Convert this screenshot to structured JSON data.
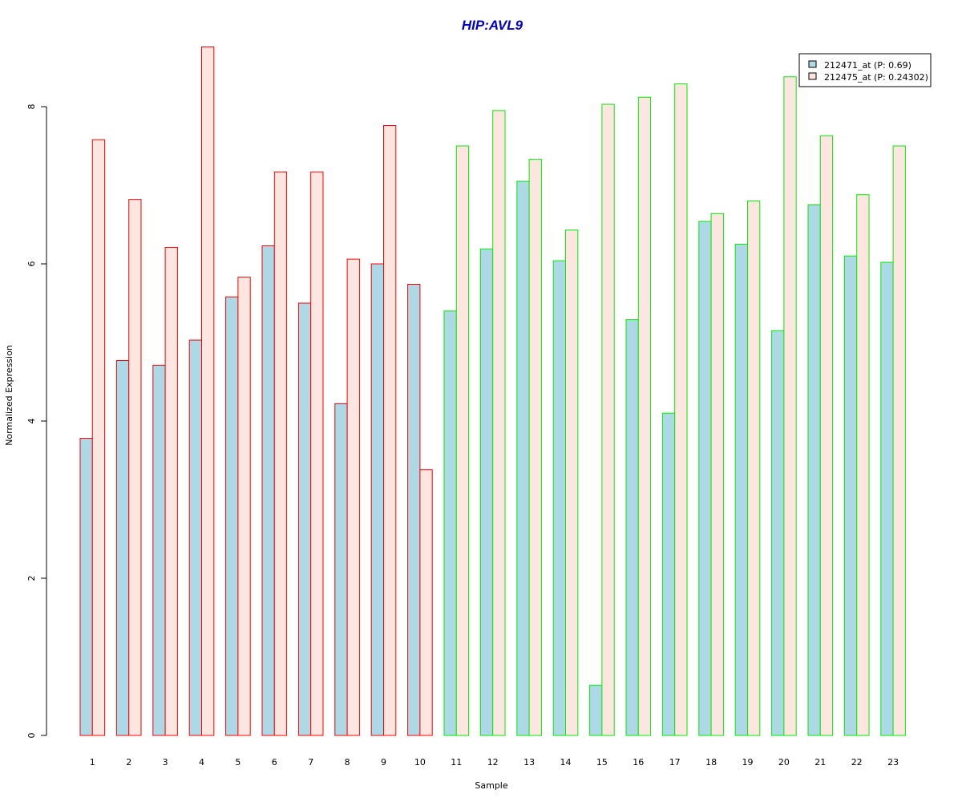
{
  "chart_data": {
    "type": "bar",
    "title": "HIP:AVL9",
    "xlabel": "Sample",
    "ylabel": "Normalized Expression",
    "ylim": [
      0,
      8.76
    ],
    "yticks": [
      "0",
      "2",
      "4",
      "6",
      "8"
    ],
    "categories": [
      "1",
      "2",
      "3",
      "4",
      "5",
      "6",
      "7",
      "8",
      "9",
      "10",
      "11",
      "12",
      "13",
      "14",
      "15",
      "16",
      "17",
      "18",
      "19",
      "20",
      "21",
      "22",
      "23"
    ],
    "group_border_colors": [
      "#ff0000",
      "#ff0000",
      "#ff0000",
      "#ff0000",
      "#ff0000",
      "#ff0000",
      "#ff0000",
      "#ff0000",
      "#ff0000",
      "#ff0000",
      "#00ee00",
      "#00ee00",
      "#00ee00",
      "#00ee00",
      "#00ee00",
      "#00ee00",
      "#00ee00",
      "#00ee00",
      "#00ee00",
      "#00ee00",
      "#00ee00",
      "#00ee00",
      "#00ee00"
    ],
    "series": [
      {
        "name": "212471_at (P: 0.69)",
        "fill": "#add8e6",
        "values": [
          3.78,
          4.77,
          4.71,
          5.03,
          5.58,
          6.23,
          5.5,
          4.22,
          6.0,
          5.74,
          5.4,
          6.19,
          7.05,
          6.04,
          0.64,
          5.29,
          4.1,
          6.54,
          6.25,
          5.15,
          6.75,
          6.1,
          6.02
        ]
      },
      {
        "name": "212475_at (P: 0.24302)",
        "fill": "#fde6e0",
        "values": [
          7.58,
          6.82,
          6.21,
          8.76,
          5.83,
          7.17,
          7.17,
          6.06,
          7.76,
          3.38,
          7.5,
          7.95,
          7.33,
          6.43,
          8.03,
          8.12,
          8.29,
          6.64,
          6.8,
          8.38,
          7.63,
          6.88,
          7.5
        ]
      }
    ],
    "legend_position": "top-right",
    "title_color": "#0000cc"
  }
}
